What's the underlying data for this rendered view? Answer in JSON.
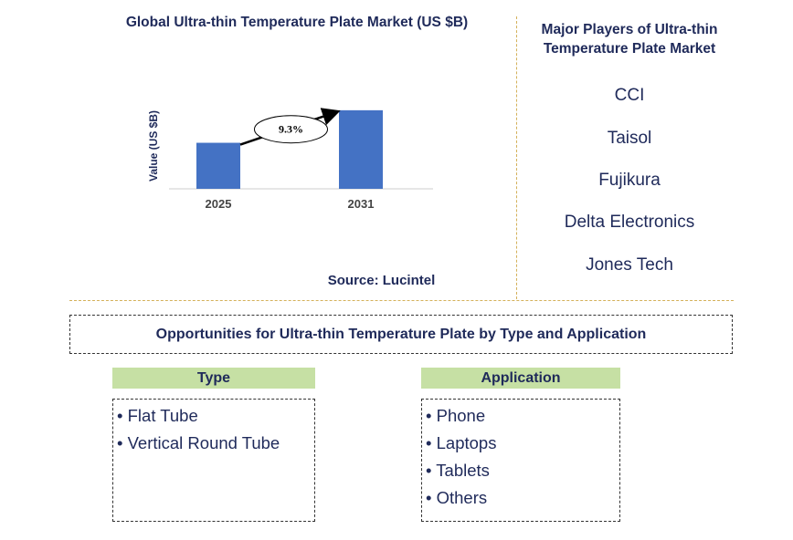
{
  "chart_data": {
    "type": "bar",
    "title": "Global Ultra-thin Temperature Plate Market (US $B)",
    "categories": [
      "2025",
      "2031"
    ],
    "values": [
      0.58,
      0.99
    ],
    "ylabel": "Value (US $B)",
    "xlabel": "",
    "ylim": [
      0,
      1.0
    ],
    "grid": false,
    "bar_color": "#4472c4",
    "annotation": {
      "label": "9.3%",
      "type": "CAGR arrow from 2025 to 2031"
    }
  },
  "source": "Source: Lucintel",
  "players": {
    "title": "Major Players of Ultra-thin Temperature Plate Market",
    "items": [
      "CCI",
      "Taisol",
      "Fujikura",
      "Delta Electronics",
      "Jones Tech"
    ]
  },
  "opportunities": {
    "title": "Opportunities for Ultra-thin Temperature Plate by Type and Application",
    "type": {
      "header": "Type",
      "items": [
        "• Flat Tube",
        "• Vertical Round Tube"
      ]
    },
    "application": {
      "header": "Application",
      "items": [
        "• Phone",
        "• Laptops",
        "• Tablets",
        "• Others"
      ]
    }
  },
  "colors": {
    "accent_green": "#c6e0a4",
    "title_navy": "#1f2a5a",
    "separator": "#d4b15a"
  }
}
